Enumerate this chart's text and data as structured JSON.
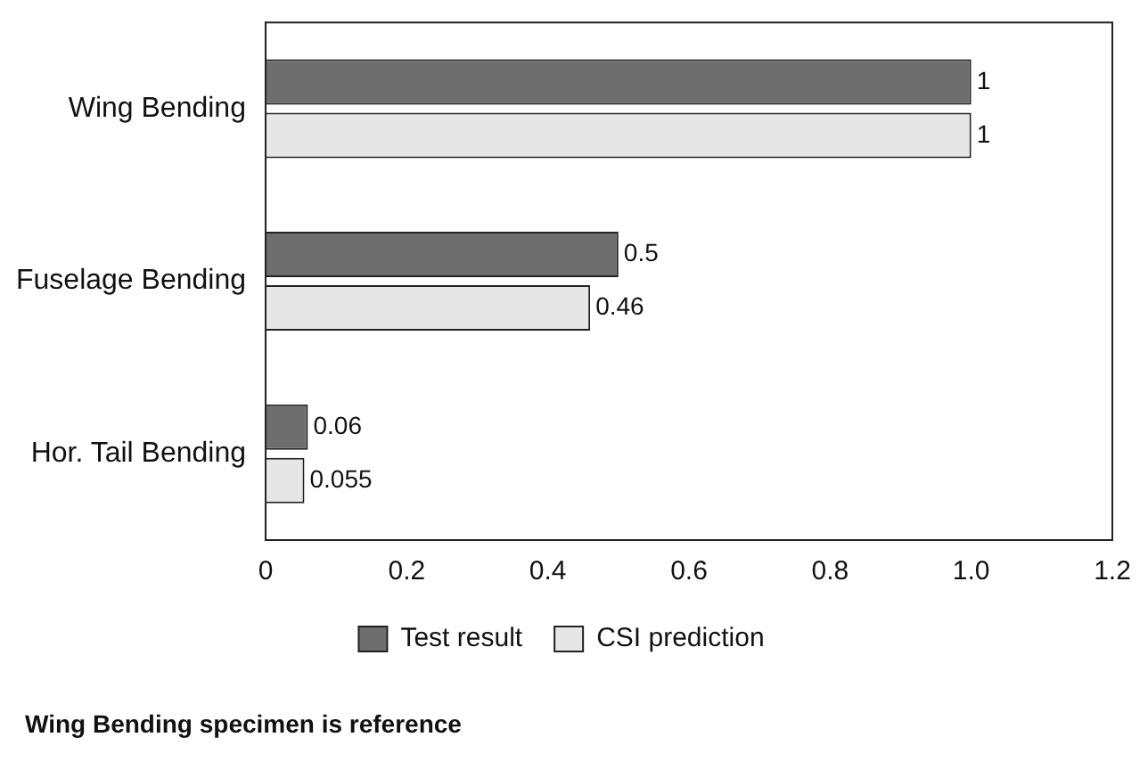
{
  "chart_data": {
    "type": "bar",
    "orientation": "horizontal",
    "categories": [
      "Wing Bending",
      "Fuselage Bending",
      "Hor. Tail Bending"
    ],
    "series": [
      {
        "name": "Test result",
        "color": "#6e6e6e",
        "values": [
          1,
          0.5,
          0.06
        ]
      },
      {
        "name": "CSI prediction",
        "color": "#e6e6e6",
        "values": [
          1,
          0.46,
          0.055
        ]
      }
    ],
    "xlim": [
      0,
      1.2
    ],
    "xticks": [
      0,
      0.2,
      0.4,
      0.6,
      0.8,
      {
        "value": 1,
        "label": "1.0"
      },
      1.2
    ],
    "grid": false,
    "legend": "bottom",
    "data_labels": true,
    "annotations": [
      "Wing Bending specimen is reference"
    ]
  }
}
